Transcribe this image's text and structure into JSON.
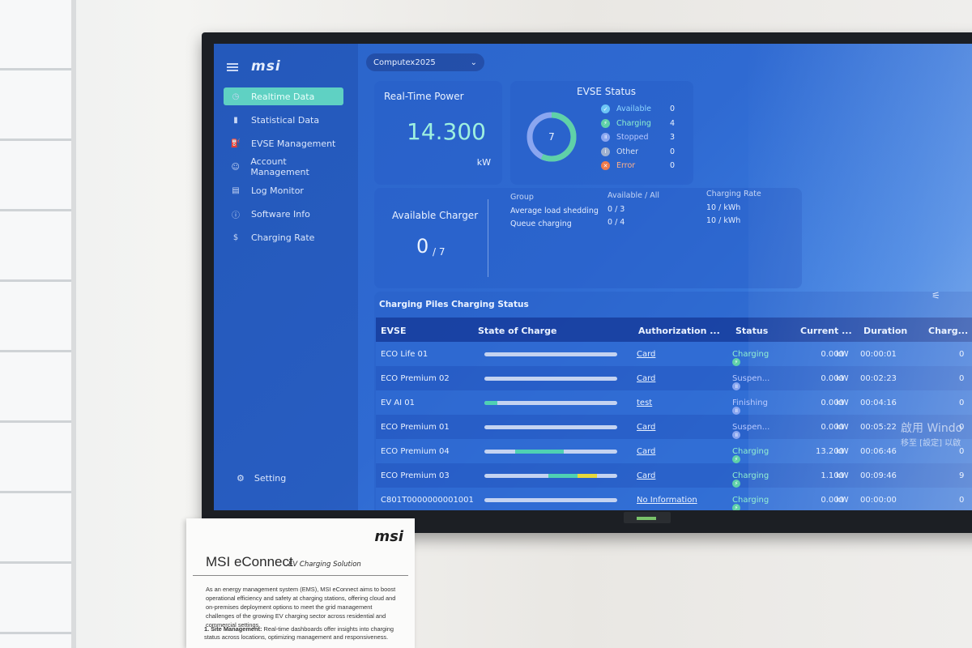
{
  "sidebar": {
    "logo": "msi",
    "items": [
      {
        "label": "Realtime Data",
        "icon": "dashboard-icon"
      },
      {
        "label": "Statistical Data",
        "icon": "bar-chart-icon"
      },
      {
        "label": "EVSE Management",
        "icon": "charger-icon"
      },
      {
        "label": "Account Management",
        "icon": "user-icon"
      },
      {
        "label": "Log Monitor",
        "icon": "document-icon"
      },
      {
        "label": "Software Info",
        "icon": "info-icon"
      },
      {
        "label": "Charging Rate",
        "icon": "dollar-icon"
      }
    ],
    "setting_label": "Setting"
  },
  "station": {
    "selected": "Computex2025"
  },
  "power": {
    "title": "Real-Time Power",
    "value": "14.300",
    "unit": "kW"
  },
  "evse_status": {
    "title": "EVSE Status",
    "total": "7",
    "items": [
      {
        "label": "Available",
        "count": "0",
        "color": "#6ec6f5"
      },
      {
        "label": "Charging",
        "count": "4",
        "color": "#5fd1a8"
      },
      {
        "label": "Stopped",
        "count": "3",
        "color": "#8aa6f0"
      },
      {
        "label": "Other",
        "count": "0",
        "color": "#9fb1cf"
      },
      {
        "label": "Error",
        "count": "0",
        "color": "#f07b4c"
      }
    ]
  },
  "available_charger": {
    "title": "Available Charger",
    "available": "0",
    "total": "/ 7",
    "headers": {
      "group": "Group",
      "avail": "Available / All",
      "rate": "Charging Rate"
    },
    "groups": [
      {
        "name": "Average load shedding",
        "avail": "0 / 3",
        "rate": "10 / kWh"
      },
      {
        "name": "Queue charging",
        "avail": "0 / 4",
        "rate": "10 / kWh"
      }
    ]
  },
  "table": {
    "title": "Charging Piles Charging Status",
    "headers": [
      "EVSE",
      "State of Charge",
      "Authorization ...",
      "Status",
      "Current ...",
      "Duration",
      "Charg..."
    ],
    "rows": [
      {
        "evse": "ECO Life 01",
        "soc": 0,
        "auth": "Card",
        "status": "Charging",
        "status_color": "#5fd1a8",
        "current": "0.000",
        "unit": "kW",
        "duration": "00:00:01",
        "charge": "0"
      },
      {
        "evse": "ECO Premium 02",
        "soc": 0,
        "auth": "Card",
        "status": "Suspen...",
        "status_color": "#8aa6f0",
        "current": "0.000",
        "unit": "kW",
        "duration": "00:02:23",
        "charge": "0"
      },
      {
        "evse": "EV AI 01",
        "soc": 0.1,
        "auth": "test",
        "status": "Finishing",
        "status_color": "#8aa6f0",
        "current": "0.000",
        "unit": "kW",
        "duration": "00:04:16",
        "charge": "0"
      },
      {
        "evse": "ECO Premium 01",
        "soc": 0,
        "auth": "Card",
        "status": "Suspen...",
        "status_color": "#8aa6f0",
        "current": "0.000",
        "unit": "kW",
        "duration": "00:05:22",
        "charge": "0"
      },
      {
        "evse": "ECO Premium 04",
        "soc": 0.6,
        "auth": "Card",
        "status": "Charging",
        "status_color": "#5fd1a8",
        "current": "13.200",
        "unit": "kW",
        "duration": "00:06:46",
        "charge": "0"
      },
      {
        "evse": "ECO Premium 03",
        "soc": 0.85,
        "auth": "Card",
        "status": "Charging",
        "status_color": "#5fd1a8",
        "current": "1.100",
        "unit": "kW",
        "duration": "00:09:46",
        "charge": "9"
      },
      {
        "evse": "C801T0000000001001",
        "soc": 0,
        "auth": "No Information",
        "status": "Charging",
        "status_color": "#5fd1a8",
        "current": "0.000",
        "unit": "kW",
        "duration": "00:00:00",
        "charge": "0"
      }
    ]
  },
  "windows_watermark": {
    "line1": "啟用 Windo",
    "line2": "移至 [設定] 以啟"
  },
  "placard": {
    "logo": "msi",
    "title": "MSI eConnect",
    "subtitle": "EV Charging Solution",
    "body": "As an energy management system (EMS), MSI eConnect aims to boost operational efficiency and safety at charging stations, offering cloud and on-premises deployment options to meet the grid management challenges of the growing EV charging sector across residential and commercial settings.",
    "list_item_title": "1. Site Management:",
    "list_item_text": "Real-time dashboards offer insights into charging status across locations, optimizing management and responsiveness."
  }
}
